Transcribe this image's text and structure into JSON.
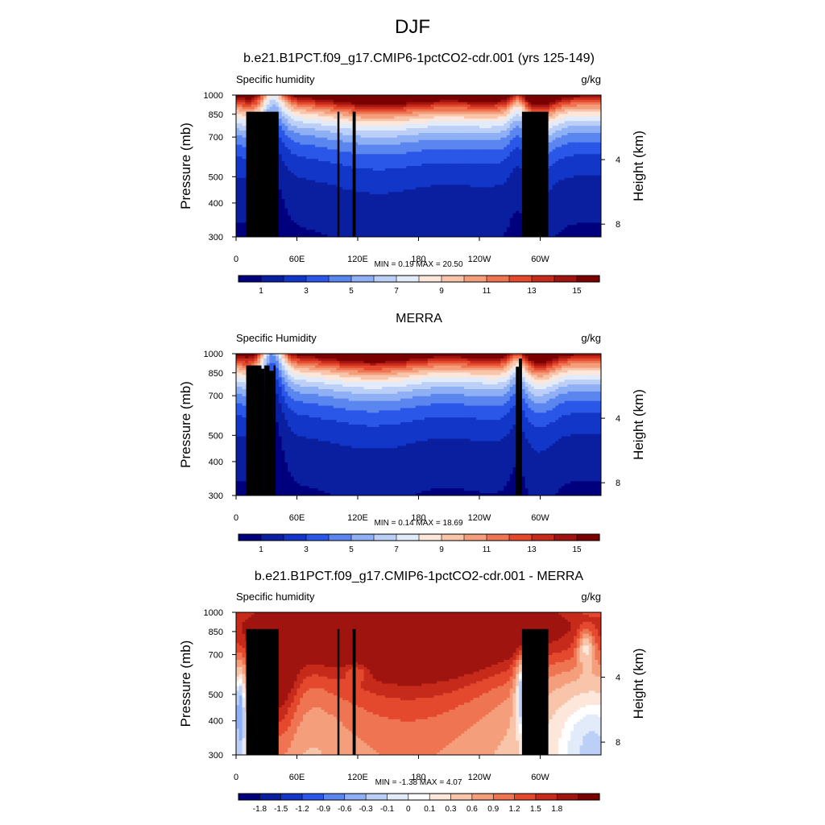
{
  "figure": {
    "title": "DJF"
  },
  "colors": {
    "humidity_palette": [
      "#00007f",
      "#0a1fa0",
      "#1236c8",
      "#2b57e8",
      "#5b86f0",
      "#8fb0f4",
      "#bcd0f7",
      "#e2ebfa",
      "#fde6da",
      "#f8c4aa",
      "#f49e7c",
      "#ef7552",
      "#e4492e",
      "#c62a1a",
      "#a01410",
      "#7a0000"
    ],
    "diff_palette": [
      "#00007f",
      "#0a1fa0",
      "#1236c8",
      "#2b57e8",
      "#5b86f0",
      "#8fb0f4",
      "#bcd0f7",
      "#e2ebfa",
      "#ffffff",
      "#fde6da",
      "#f8c4aa",
      "#f49e7c",
      "#ef7552",
      "#e4492e",
      "#c62a1a",
      "#a01410",
      "#7a0000"
    ],
    "topo": "#000000"
  },
  "panels": [
    {
      "title": "b.e21.B1PCT.f09_g17.CMIP6-1pctCO2-cdr.001 (yrs 125-149)",
      "variable": "Specific humidity",
      "units": "g/kg",
      "stats": "MIN =   0.19  MAX =  20.50"
    },
    {
      "title": "MERRA",
      "variable": "Specific Humidity",
      "units": "g/kg",
      "stats": "MIN =   0.14  MAX =  18.69"
    },
    {
      "title": "b.e21.B1PCT.f09_g17.CMIP6-1pctCO2-cdr.001 - MERRA",
      "variable": "Specific humidity",
      "units": "g/kg",
      "stats": "MIN =  -1.38  MAX =   4.07"
    }
  ],
  "chart_data": [
    {
      "type": "heatmap",
      "title": "b.e21.B1PCT.f09_g17.CMIP6-1pctCO2-cdr.001 (yrs 125-149)",
      "subtitle": "Specific humidity",
      "units": "g/kg",
      "xlabel": "",
      "ylabel": "Pressure (mb)",
      "y2label": "Height (km)",
      "xticks": [
        "0",
        "60E",
        "120E",
        "180",
        "120W",
        "60W"
      ],
      "xtick_values": [
        0,
        60,
        120,
        180,
        240,
        300
      ],
      "xlim": [
        0,
        360
      ],
      "yticks": [
        "300",
        "400",
        "500",
        "700",
        "850",
        "1000"
      ],
      "ytick_values": [
        300,
        400,
        500,
        700,
        850,
        1000
      ],
      "ylim": [
        1000,
        300
      ],
      "y2ticks": [
        "8",
        "4"
      ],
      "y2tick_values": [
        8,
        4
      ],
      "colorbar_labels": [
        "1",
        "3",
        "5",
        "7",
        "9",
        "11",
        "13",
        "15"
      ],
      "colorbar_levels": 16,
      "min": 0.19,
      "max": 20.5
    },
    {
      "type": "heatmap",
      "title": "MERRA",
      "subtitle": "Specific Humidity",
      "units": "g/kg",
      "xlabel": "",
      "ylabel": "Pressure (mb)",
      "y2label": "Height (km)",
      "xticks": [
        "0",
        "60E",
        "120E",
        "180",
        "120W",
        "60W"
      ],
      "xtick_values": [
        0,
        60,
        120,
        180,
        240,
        300
      ],
      "xlim": [
        0,
        360
      ],
      "yticks": [
        "300",
        "400",
        "500",
        "700",
        "850",
        "1000"
      ],
      "ytick_values": [
        300,
        400,
        500,
        700,
        850,
        1000
      ],
      "ylim": [
        1000,
        300
      ],
      "y2ticks": [
        "8",
        "4"
      ],
      "y2tick_values": [
        8,
        4
      ],
      "colorbar_labels": [
        "1",
        "3",
        "5",
        "7",
        "9",
        "11",
        "13",
        "15"
      ],
      "colorbar_levels": 16,
      "min": 0.14,
      "max": 18.69
    },
    {
      "type": "heatmap",
      "title": "b.e21.B1PCT.f09_g17.CMIP6-1pctCO2-cdr.001 - MERRA",
      "subtitle": "Specific humidity",
      "units": "g/kg",
      "xlabel": "",
      "ylabel": "Pressure (mb)",
      "y2label": "Height (km)",
      "xticks": [
        "0",
        "60E",
        "120E",
        "180",
        "120W",
        "60W"
      ],
      "xtick_values": [
        0,
        60,
        120,
        180,
        240,
        300
      ],
      "xlim": [
        0,
        360
      ],
      "yticks": [
        "300",
        "400",
        "500",
        "700",
        "850",
        "1000"
      ],
      "ytick_values": [
        300,
        400,
        500,
        700,
        850,
        1000
      ],
      "ylim": [
        1000,
        300
      ],
      "y2ticks": [
        "8",
        "4"
      ],
      "y2tick_values": [
        8,
        4
      ],
      "colorbar_labels": [
        "-1.8",
        "-1.5",
        "-1.2",
        "-0.9",
        "-0.6",
        "-0.3",
        "-0.1",
        "0",
        "0.1",
        "0.3",
        "0.6",
        "0.9",
        "1.2",
        "1.5",
        "1.8"
      ],
      "colorbar_levels": 17,
      "min": -1.38,
      "max": 4.07
    }
  ]
}
